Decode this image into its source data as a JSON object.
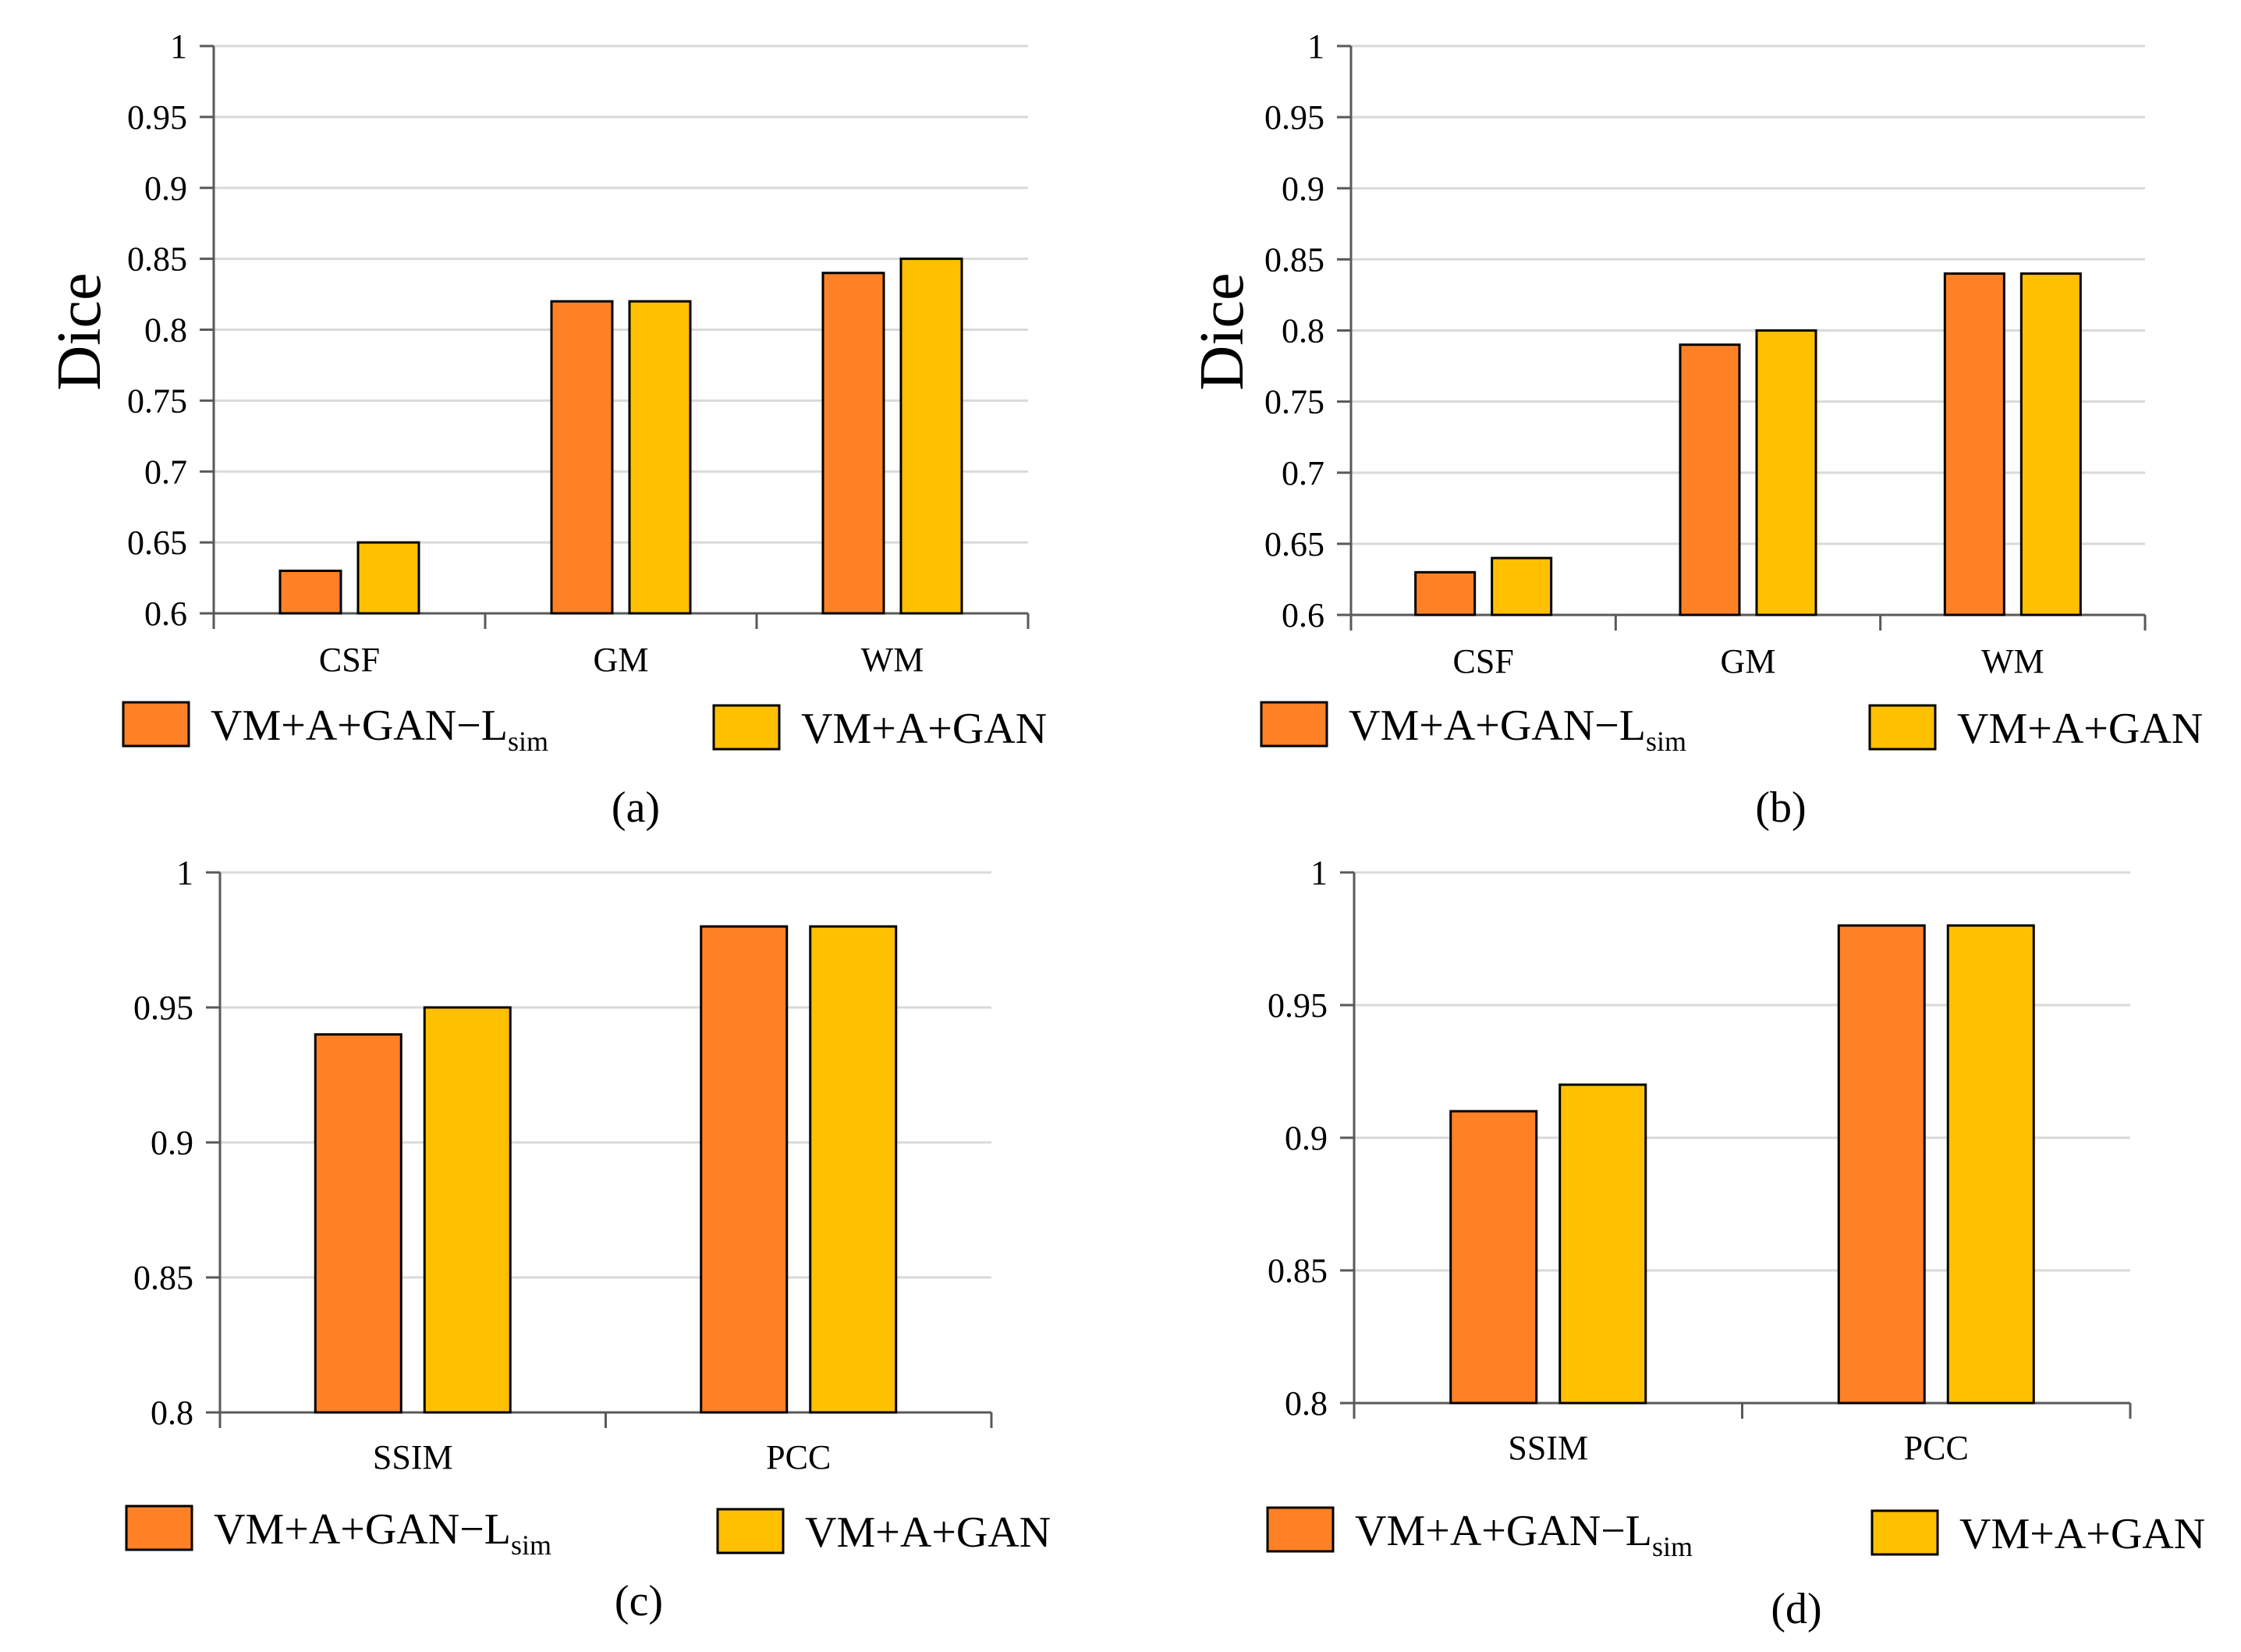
{
  "colors": {
    "series1": "#FE8126",
    "series2": "#FFC000",
    "grid": "#D9D9D9",
    "axis": "#595959"
  },
  "chart_data": [
    {
      "type": "bar",
      "panel": "(a)",
      "caption": "(a)",
      "ylabel": "Dice",
      "ylim": [
        0.6,
        1
      ],
      "yticks": [
        "0.6",
        "0.65",
        "0.7",
        "0.75",
        "0.8",
        "0.85",
        "0.9",
        "0.95",
        "1"
      ],
      "categories": [
        "CSF",
        "GM",
        "WM"
      ],
      "series": [
        {
          "name": "VM+A+GAN−L",
          "sub": "sim",
          "values": [
            0.63,
            0.82,
            0.84
          ]
        },
        {
          "name": "VM+A+GAN",
          "values": [
            0.65,
            0.82,
            0.85
          ]
        }
      ],
      "grid": true,
      "legend": "bottom"
    },
    {
      "type": "bar",
      "panel": "(b)",
      "caption": "(b)",
      "ylabel": "Dice",
      "ylim": [
        0.6,
        1
      ],
      "yticks": [
        "0.6",
        "0.65",
        "0.7",
        "0.75",
        "0.8",
        "0.85",
        "0.9",
        "0.95",
        "1"
      ],
      "categories": [
        "CSF",
        "GM",
        "WM"
      ],
      "series": [
        {
          "name": "VM+A+GAN−L",
          "sub": "sim",
          "values": [
            0.63,
            0.79,
            0.84
          ]
        },
        {
          "name": "VM+A+GAN",
          "values": [
            0.64,
            0.8,
            0.84
          ]
        }
      ],
      "grid": true,
      "legend": "bottom"
    },
    {
      "type": "bar",
      "panel": "(c)",
      "caption": "(c)",
      "ylabel": "",
      "ylim": [
        0.8,
        1
      ],
      "yticks": [
        "0.8",
        "0.85",
        "0.9",
        "0.95",
        "1"
      ],
      "categories": [
        "SSIM",
        "PCC"
      ],
      "series": [
        {
          "name": "VM+A+GAN−L",
          "sub": "sim",
          "values": [
            0.94,
            0.98
          ]
        },
        {
          "name": "VM+A+GAN",
          "values": [
            0.95,
            0.98
          ]
        }
      ],
      "grid": true,
      "legend": "bottom"
    },
    {
      "type": "bar",
      "panel": "(d)",
      "caption": "(d)",
      "ylabel": "",
      "ylim": [
        0.8,
        1
      ],
      "yticks": [
        "0.8",
        "0.85",
        "0.9",
        "0.95",
        "1"
      ],
      "categories": [
        "SSIM",
        "PCC"
      ],
      "series": [
        {
          "name": "VM+A+GAN−L",
          "sub": "sim",
          "values": [
            0.91,
            0.98
          ]
        },
        {
          "name": "VM+A+GAN",
          "values": [
            0.92,
            0.98
          ]
        }
      ],
      "grid": true,
      "legend": "bottom"
    }
  ]
}
